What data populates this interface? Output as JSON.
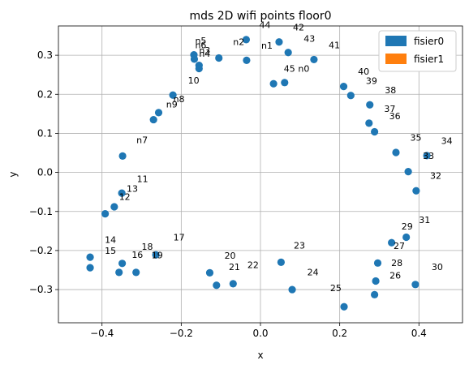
{
  "chart_data": {
    "type": "scatter",
    "title": "mds 2D wifi points floor0",
    "xlabel": "x",
    "ylabel": "y",
    "xlim": [
      -0.51,
      0.51
    ],
    "ylim": [
      -0.385,
      0.375
    ],
    "xticks": [
      -0.4,
      -0.2,
      0.0,
      0.2,
      0.4
    ],
    "xtick_labels": [
      "−0.4",
      "−0.2",
      "0.0",
      "0.2",
      "0.4"
    ],
    "yticks": [
      -0.3,
      -0.2,
      -0.1,
      0.0,
      0.1,
      0.2,
      0.3
    ],
    "ytick_labels": [
      "−0.3",
      "−0.2",
      "−0.1",
      "0.0",
      "0.1",
      "0.2",
      "0.3"
    ],
    "grid": true,
    "legend_position": "top-right",
    "legend": [
      {
        "name": "fisier0",
        "color": "#1f77b4"
      },
      {
        "name": "fisier1",
        "color": "#ff7f0e"
      }
    ],
    "marker_color": "#1f77b4",
    "points": [
      {
        "x": -0.036,
        "y": 0.34
      },
      {
        "x": 0.047,
        "y": 0.334
      },
      {
        "x": 0.07,
        "y": 0.307
      },
      {
        "x": 0.135,
        "y": 0.289
      },
      {
        "x": -0.035,
        "y": 0.287
      },
      {
        "x": -0.105,
        "y": 0.293
      },
      {
        "x": -0.168,
        "y": 0.301
      },
      {
        "x": -0.167,
        "y": 0.29
      },
      {
        "x": -0.155,
        "y": 0.274
      },
      {
        "x": -0.155,
        "y": 0.266
      },
      {
        "x": 0.033,
        "y": 0.227
      },
      {
        "x": 0.061,
        "y": 0.23
      },
      {
        "x": 0.21,
        "y": 0.22
      },
      {
        "x": 0.228,
        "y": 0.197
      },
      {
        "x": -0.221,
        "y": 0.198
      },
      {
        "x": -0.257,
        "y": 0.153
      },
      {
        "x": -0.27,
        "y": 0.135
      },
      {
        "x": 0.276,
        "y": 0.173
      },
      {
        "x": 0.274,
        "y": 0.126
      },
      {
        "x": 0.288,
        "y": 0.104
      },
      {
        "x": -0.348,
        "y": 0.042
      },
      {
        "x": 0.342,
        "y": 0.051
      },
      {
        "x": 0.42,
        "y": 0.043
      },
      {
        "x": 0.373,
        "y": 0.002
      },
      {
        "x": 0.393,
        "y": -0.047
      },
      {
        "x": -0.35,
        "y": -0.053
      },
      {
        "x": -0.369,
        "y": -0.088
      },
      {
        "x": -0.392,
        "y": -0.106
      },
      {
        "x": 0.368,
        "y": -0.166
      },
      {
        "x": 0.331,
        "y": -0.18
      },
      {
        "x": -0.264,
        "y": -0.211
      },
      {
        "x": -0.43,
        "y": -0.217
      },
      {
        "x": -0.43,
        "y": -0.244
      },
      {
        "x": -0.349,
        "y": -0.233
      },
      {
        "x": -0.357,
        "y": -0.256
      },
      {
        "x": -0.314,
        "y": -0.256
      },
      {
        "x": -0.128,
        "y": -0.257
      },
      {
        "x": -0.111,
        "y": -0.289
      },
      {
        "x": -0.069,
        "y": -0.285
      },
      {
        "x": 0.052,
        "y": -0.23
      },
      {
        "x": 0.08,
        "y": -0.3
      },
      {
        "x": 0.296,
        "y": -0.232
      },
      {
        "x": 0.291,
        "y": -0.278
      },
      {
        "x": 0.288,
        "y": -0.313
      },
      {
        "x": 0.211,
        "y": -0.344
      },
      {
        "x": 0.391,
        "y": -0.287
      }
    ],
    "annotations": [
      {
        "text": "44",
        "x": -0.003,
        "y": 0.37
      },
      {
        "text": "42",
        "x": 0.082,
        "y": 0.364
      },
      {
        "text": "43",
        "x": 0.109,
        "y": 0.334
      },
      {
        "text": "41",
        "x": 0.172,
        "y": 0.318
      },
      {
        "text": "n5",
        "x": -0.165,
        "y": 0.329
      },
      {
        "text": "n2",
        "x": -0.069,
        "y": 0.326
      },
      {
        "text": "n1",
        "x": 0.002,
        "y": 0.317
      },
      {
        "text": "n6",
        "x": -0.165,
        "y": 0.318
      },
      {
        "text": "n3",
        "x": -0.155,
        "y": 0.304
      },
      {
        "text": "n4",
        "x": -0.155,
        "y": 0.296
      },
      {
        "text": "45",
        "x": 0.059,
        "y": 0.258
      },
      {
        "text": "n0",
        "x": 0.095,
        "y": 0.258
      },
      {
        "text": "40",
        "x": 0.246,
        "y": 0.25
      },
      {
        "text": "39",
        "x": 0.266,
        "y": 0.227
      },
      {
        "text": "38",
        "x": 0.314,
        "y": 0.203
      },
      {
        "text": "10",
        "x": -0.183,
        "y": 0.228
      },
      {
        "text": "n8",
        "x": -0.22,
        "y": 0.18
      },
      {
        "text": "n9",
        "x": -0.238,
        "y": 0.166
      },
      {
        "text": "37",
        "x": 0.312,
        "y": 0.155
      },
      {
        "text": "36",
        "x": 0.325,
        "y": 0.136
      },
      {
        "text": "n7",
        "x": -0.313,
        "y": 0.075
      },
      {
        "text": "35",
        "x": 0.378,
        "y": 0.081
      },
      {
        "text": "34",
        "x": 0.456,
        "y": 0.073
      },
      {
        "text": "33",
        "x": 0.41,
        "y": 0.034
      },
      {
        "text": "32",
        "x": 0.428,
        "y": -0.016
      },
      {
        "text": "11",
        "x": -0.312,
        "y": -0.025
      },
      {
        "text": "13",
        "x": -0.338,
        "y": -0.05
      },
      {
        "text": "12",
        "x": -0.357,
        "y": -0.07
      },
      {
        "text": "31",
        "x": 0.4,
        "y": -0.13
      },
      {
        "text": "29",
        "x": 0.356,
        "y": -0.146
      },
      {
        "text": "27",
        "x": 0.336,
        "y": -0.196
      },
      {
        "text": "17",
        "x": -0.22,
        "y": -0.174
      },
      {
        "text": "14",
        "x": -0.393,
        "y": -0.18
      },
      {
        "text": "15",
        "x": -0.393,
        "y": -0.208
      },
      {
        "text": "18",
        "x": -0.3,
        "y": -0.198
      },
      {
        "text": "16",
        "x": -0.325,
        "y": -0.219
      },
      {
        "text": "19",
        "x": -0.275,
        "y": -0.22
      },
      {
        "text": "20",
        "x": -0.091,
        "y": -0.221
      },
      {
        "text": "23",
        "x": 0.084,
        "y": -0.195
      },
      {
        "text": "22",
        "x": -0.033,
        "y": -0.245
      },
      {
        "text": "21",
        "x": -0.08,
        "y": -0.25
      },
      {
        "text": "28",
        "x": 0.33,
        "y": -0.24
      },
      {
        "text": "30",
        "x": 0.432,
        "y": -0.25
      },
      {
        "text": "24",
        "x": 0.118,
        "y": -0.263
      },
      {
        "text": "26",
        "x": 0.326,
        "y": -0.272
      },
      {
        "text": "25",
        "x": 0.176,
        "y": -0.304
      }
    ]
  }
}
